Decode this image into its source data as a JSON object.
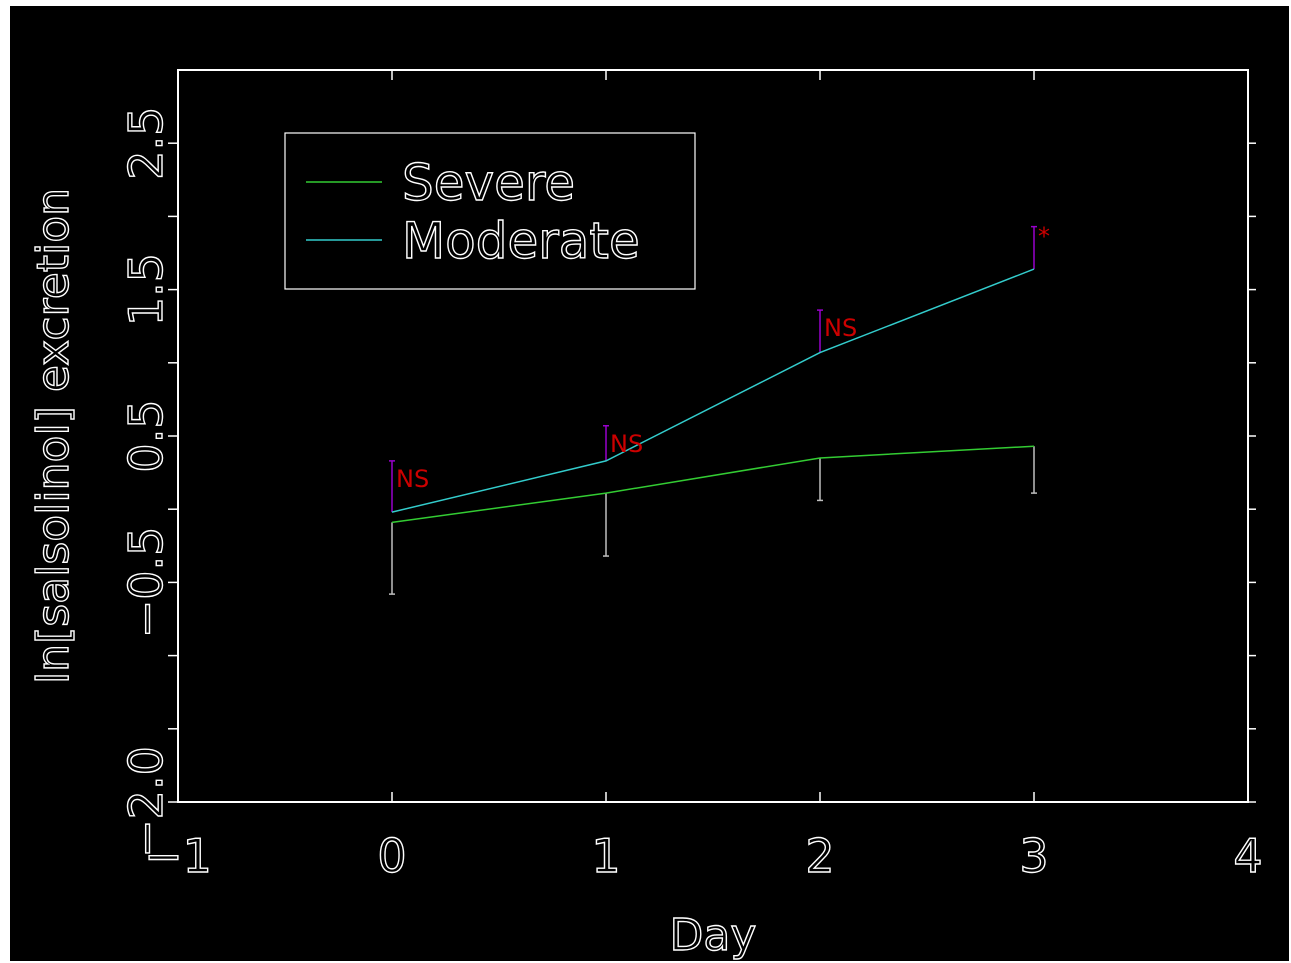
{
  "chart_data": {
    "type": "line",
    "xlabel": "Day",
    "ylabel": "ln[salsolinol] excretion",
    "xlim": [
      -1,
      4
    ],
    "ylim": [
      -2.0,
      3.0
    ],
    "x_ticks": [
      -1,
      0,
      1,
      2,
      3,
      4
    ],
    "x_tick_labels": [
      "−1",
      "0",
      "1",
      "2",
      "3",
      "4"
    ],
    "y_ticks": [
      -2.0,
      -1.5,
      -1.0,
      -0.5,
      0.0,
      0.5,
      1.0,
      1.5,
      2.0,
      2.5
    ],
    "y_tick_labels": [
      "−2.0",
      "",
      "",
      "−0.5",
      "",
      "0.5",
      "",
      "1.5",
      "",
      "2.5"
    ],
    "x": [
      0,
      1,
      2,
      3
    ],
    "series": [
      {
        "name": "Severe",
        "color": "#33cc33",
        "values": [
          -0.09,
          0.11,
          0.35,
          0.43
        ],
        "error_lower": [
          0.49,
          0.43,
          0.29,
          0.32
        ],
        "error_color": "#bfbfbf"
      },
      {
        "name": "Moderate",
        "color": "#33cccc",
        "values": [
          -0.02,
          0.33,
          1.07,
          1.64
        ],
        "error_upper": [
          0.35,
          0.24,
          0.29,
          0.29
        ],
        "error_color": "#9900cc"
      }
    ],
    "annotations": [
      {
        "x": 0,
        "text": "NS",
        "color": "#cc0000"
      },
      {
        "x": 1,
        "text": "NS",
        "color": "#cc0000"
      },
      {
        "x": 2,
        "text": "NS",
        "color": "#cc0000"
      },
      {
        "x": 3,
        "text": "*",
        "color": "#cc0000"
      }
    ],
    "legend": "top-left",
    "grid": false,
    "background": "#000000",
    "axis_color": "#ffffff"
  }
}
